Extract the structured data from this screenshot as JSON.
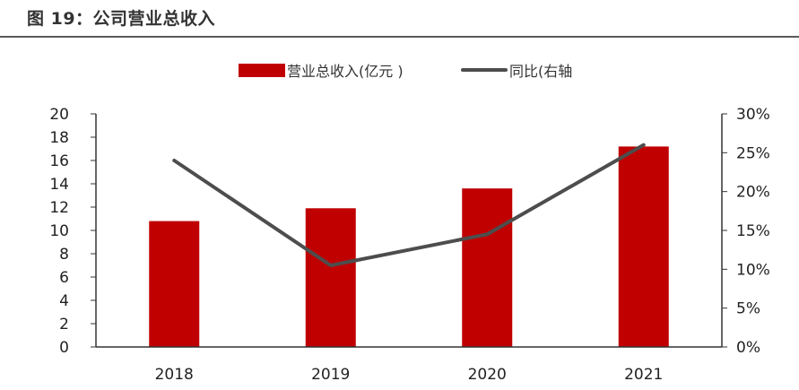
{
  "figure": {
    "title": "图 19：公司营业总收入"
  },
  "colors": {
    "bar": "#c00000",
    "line": "#4d4d4d",
    "axis": "#333333"
  },
  "chart_data": {
    "type": "bar",
    "categories": [
      "2018",
      "2019",
      "2020",
      "2021"
    ],
    "series": [
      {
        "name": "营业总收入(亿元 )",
        "type": "bar",
        "axis": "left",
        "values": [
          10.8,
          11.9,
          13.6,
          17.2
        ]
      },
      {
        "name": "同比(右轴",
        "type": "line",
        "axis": "right",
        "values": [
          24.0,
          10.5,
          14.5,
          26.0
        ]
      }
    ],
    "y_left": {
      "ylim": [
        0,
        20
      ],
      "ticks": [
        "0",
        "2",
        "4",
        "6",
        "8",
        "10",
        "12",
        "14",
        "16",
        "18",
        "20"
      ]
    },
    "y_right": {
      "ylim": [
        0,
        30
      ],
      "ticks": [
        "0%",
        "5%",
        "10%",
        "15%",
        "20%",
        "25%",
        "30%"
      ]
    },
    "legend_position": "top-center",
    "grid": false
  }
}
